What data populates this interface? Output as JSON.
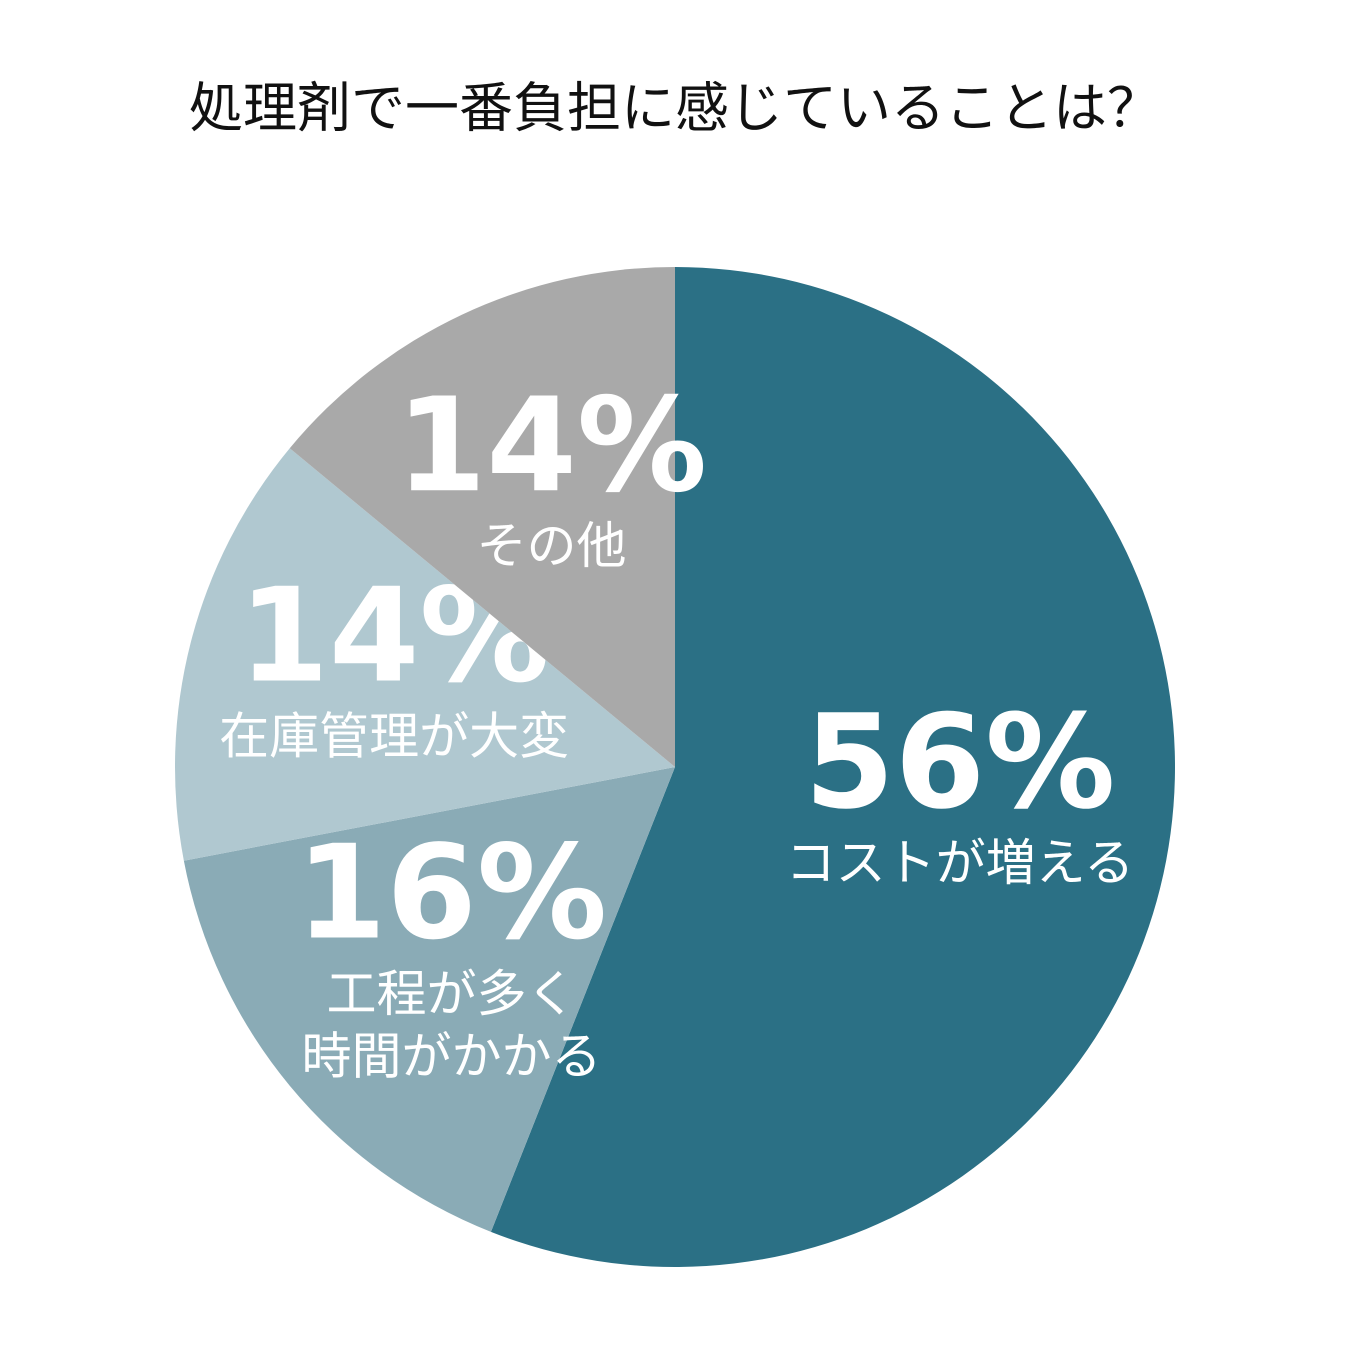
{
  "chart_data": {
    "type": "pie",
    "title": "処理剤で一番負担に感じていることは？",
    "categories": [
      "コストが増える",
      "工程が多く\n時間がかかる",
      "在庫管理が大変",
      "その他"
    ],
    "values": [
      56,
      16,
      14,
      14
    ],
    "value_labels": [
      "56%",
      "16%",
      "14%",
      "14%"
    ],
    "colors": [
      "#2b7085",
      "#8aabb6",
      "#b0c8d0",
      "#a9a9a9"
    ]
  }
}
